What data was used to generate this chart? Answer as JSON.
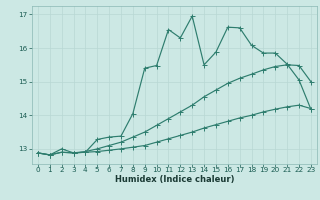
{
  "xlabel": "Humidex (Indice chaleur)",
  "bg_color": "#cce8e4",
  "line_color": "#2e7d6e",
  "grid_major_color": "#b8d8d4",
  "grid_minor_color": "#d0e8e4",
  "xlim": [
    -0.5,
    23.5
  ],
  "ylim": [
    12.55,
    17.25
  ],
  "xticks": [
    0,
    1,
    2,
    3,
    4,
    5,
    6,
    7,
    8,
    9,
    10,
    11,
    12,
    13,
    14,
    15,
    16,
    17,
    18,
    19,
    20,
    21,
    22,
    23
  ],
  "yticks": [
    13,
    14,
    15,
    16,
    17
  ],
  "line1_x": [
    0,
    1,
    2,
    3,
    4,
    5,
    6,
    7,
    8,
    9,
    10,
    11,
    12,
    13,
    14,
    15,
    16,
    17,
    18,
    19,
    20,
    21,
    22,
    23
  ],
  "line1_y": [
    12.88,
    12.82,
    12.9,
    12.88,
    12.9,
    12.92,
    12.96,
    13.0,
    13.05,
    13.1,
    13.2,
    13.3,
    13.4,
    13.5,
    13.62,
    13.72,
    13.82,
    13.92,
    14.0,
    14.1,
    14.18,
    14.25,
    14.3,
    14.2
  ],
  "line2_x": [
    0,
    1,
    2,
    3,
    4,
    5,
    6,
    7,
    8,
    9,
    10,
    11,
    12,
    13,
    14,
    15,
    16,
    17,
    18,
    19,
    20,
    21,
    22,
    23
  ],
  "line2_y": [
    12.88,
    12.82,
    12.9,
    12.88,
    12.92,
    13.0,
    13.1,
    13.2,
    13.35,
    13.5,
    13.7,
    13.9,
    14.1,
    14.3,
    14.55,
    14.75,
    14.95,
    15.1,
    15.22,
    15.35,
    15.45,
    15.5,
    15.48,
    15.0
  ],
  "line3_x": [
    0,
    1,
    2,
    3,
    4,
    5,
    6,
    7,
    8,
    9,
    10,
    11,
    12,
    13,
    14,
    15,
    16,
    17,
    18,
    19,
    20,
    21,
    22,
    23
  ],
  "line3_y": [
    12.88,
    12.82,
    13.0,
    12.88,
    12.9,
    13.28,
    13.35,
    13.38,
    14.05,
    15.4,
    15.48,
    16.55,
    16.3,
    16.95,
    15.5,
    15.88,
    16.62,
    16.6,
    16.08,
    15.85,
    15.85,
    15.52,
    15.05,
    14.18
  ],
  "marker_size": 2.0,
  "line_width": 0.85,
  "tick_labelsize": 5.2,
  "xlabel_fontsize": 6.0
}
